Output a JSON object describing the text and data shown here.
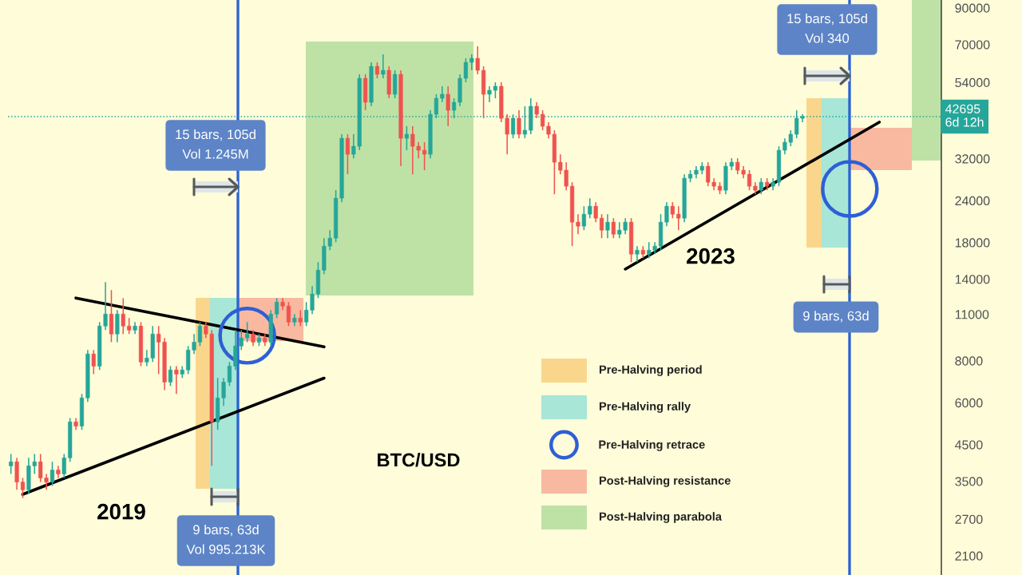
{
  "chart_data": {
    "type": "candlestick",
    "categories": [
      null,
      null,
      null,
      null,
      null,
      null,
      null,
      null,
      null,
      null,
      null,
      null,
      null,
      null,
      null,
      null,
      null,
      null,
      null,
      null,
      null,
      null,
      null,
      null,
      null,
      null,
      null,
      null,
      null,
      null,
      null,
      null,
      null,
      null,
      null,
      null,
      null,
      null,
      null,
      null,
      null,
      null,
      null,
      null,
      null,
      null,
      null,
      null,
      null,
      null,
      null,
      null,
      null,
      null,
      null,
      null,
      null,
      null,
      null,
      null,
      null,
      null,
      null,
      null,
      null,
      null,
      null,
      null,
      null,
      null,
      null,
      null,
      null,
      null,
      null,
      null,
      null,
      null,
      null,
      null,
      null,
      null,
      null,
      null,
      null,
      null,
      null,
      null,
      null,
      null,
      null,
      null,
      null,
      null,
      null,
      null,
      null,
      null,
      null,
      null,
      null,
      null,
      null,
      null,
      null,
      null,
      null,
      null,
      null,
      null,
      null,
      null,
      null,
      null,
      null,
      null,
      null,
      null,
      null,
      null,
      null,
      null,
      null,
      null,
      null,
      null,
      null,
      null,
      null,
      null,
      null,
      null,
      null,
      null,
      null,
      null,
      null,
      null,
      null,
      null,
      null,
      null,
      null,
      null,
      null,
      null,
      null,
      null,
      null,
      null,
      null,
      null,
      null,
      null,
      null,
      null,
      null,
      null
    ],
    "ohlc": [
      [
        3890,
        4220,
        3680,
        4000
      ],
      [
        4000,
        4110,
        3300,
        3480
      ],
      [
        3480,
        3580,
        3120,
        3300
      ],
      [
        3300,
        4110,
        3210,
        3890
      ],
      [
        3890,
        4220,
        3680,
        4000
      ],
      [
        4000,
        4220,
        3480,
        3580
      ],
      [
        3580,
        3680,
        3300,
        3480
      ],
      [
        3480,
        4000,
        3390,
        3780
      ],
      [
        3780,
        3890,
        3580,
        3680
      ],
      [
        3680,
        4220,
        3580,
        4110
      ],
      [
        4110,
        5400,
        4000,
        5260
      ],
      [
        5260,
        5400,
        4980,
        5110
      ],
      [
        5110,
        6370,
        4980,
        6200
      ],
      [
        6200,
        8610,
        6030,
        8380
      ],
      [
        8380,
        8610,
        7300,
        7710
      ],
      [
        7710,
        10430,
        7510,
        10150
      ],
      [
        10150,
        13720,
        9870,
        11020
      ],
      [
        11020,
        12990,
        9090,
        9610
      ],
      [
        9610,
        11320,
        9090,
        11020
      ],
      [
        11020,
        12290,
        9610,
        10150
      ],
      [
        10150,
        10720,
        9610,
        9870
      ],
      [
        9870,
        10430,
        9610,
        10150
      ],
      [
        10150,
        10430,
        7710,
        7930
      ],
      [
        7930,
        8610,
        7710,
        8150
      ],
      [
        8150,
        10150,
        7930,
        9610
      ],
      [
        9610,
        10150,
        7300,
        9090
      ],
      [
        9090,
        9350,
        6540,
        6910
      ],
      [
        6910,
        7710,
        6730,
        7510
      ],
      [
        7510,
        7710,
        6370,
        7300
      ],
      [
        7300,
        7710,
        7110,
        7510
      ],
      [
        7510,
        8850,
        7300,
        8610
      ],
      [
        8610,
        9610,
        8380,
        9090
      ],
      [
        9090,
        10430,
        8850,
        10150
      ],
      [
        10150,
        10430,
        9350,
        9610
      ],
      [
        9610,
        9870,
        3890,
        5260
      ],
      [
        5260,
        7110,
        4980,
        6200
      ],
      [
        6200,
        7110,
        5870,
        6910
      ],
      [
        6910,
        7930,
        6730,
        7710
      ],
      [
        7710,
        9870,
        7510,
        8850
      ],
      [
        8850,
        9870,
        8610,
        9350
      ],
      [
        9350,
        10430,
        9090,
        9610
      ],
      [
        9610,
        9870,
        8850,
        9090
      ],
      [
        9090,
        9610,
        8850,
        9350
      ],
      [
        9350,
        9610,
        8850,
        9090
      ],
      [
        9090,
        11320,
        8850,
        11020
      ],
      [
        11020,
        12290,
        10720,
        11960
      ],
      [
        11960,
        12290,
        11320,
        11640
      ],
      [
        11640,
        11960,
        10150,
        10430
      ],
      [
        10430,
        11020,
        10150,
        10720
      ],
      [
        10720,
        11320,
        10150,
        10430
      ],
      [
        10430,
        11960,
        10150,
        11320
      ],
      [
        11320,
        13350,
        11020,
        12640
      ],
      [
        12640,
        15730,
        12290,
        14890
      ],
      [
        14890,
        18550,
        14490,
        17560
      ],
      [
        17560,
        19590,
        17080,
        18550
      ],
      [
        18550,
        25770,
        18040,
        24400
      ],
      [
        24400,
        37830,
        23740,
        36800
      ],
      [
        36800,
        37830,
        28760,
        32980
      ],
      [
        32980,
        37830,
        32090,
        34840
      ],
      [
        34840,
        57070,
        33900,
        55520
      ],
      [
        55520,
        57070,
        44590,
        47100
      ],
      [
        47100,
        61960,
        45830,
        60280
      ],
      [
        60280,
        61960,
        55520,
        57070
      ],
      [
        57070,
        65450,
        55520,
        58650
      ],
      [
        58650,
        60280,
        48410,
        49760
      ],
      [
        49760,
        58650,
        48410,
        57070
      ],
      [
        57070,
        58650,
        30380,
        36800
      ],
      [
        36800,
        39960,
        33900,
        37830
      ],
      [
        37830,
        39960,
        28760,
        34840
      ],
      [
        34840,
        35810,
        32090,
        33900
      ],
      [
        33900,
        35810,
        29560,
        32980
      ],
      [
        32980,
        44590,
        32090,
        43380
      ],
      [
        43380,
        49760,
        42210,
        48410
      ],
      [
        48410,
        52560,
        47100,
        49760
      ],
      [
        49760,
        52560,
        39960,
        44590
      ],
      [
        44590,
        48410,
        42210,
        47100
      ],
      [
        47100,
        57070,
        45830,
        55520
      ],
      [
        55520,
        63680,
        54020,
        61960
      ],
      [
        61960,
        65450,
        58650,
        63680
      ],
      [
        63680,
        69140,
        57070,
        58650
      ],
      [
        58650,
        60280,
        42210,
        49760
      ],
      [
        49760,
        52560,
        47100,
        51140
      ],
      [
        51140,
        54020,
        48410,
        52560
      ],
      [
        52560,
        54020,
        41070,
        42210
      ],
      [
        42210,
        43380,
        32980,
        37830
      ],
      [
        37830,
        43380,
        36800,
        42210
      ],
      [
        42210,
        44590,
        36800,
        37830
      ],
      [
        37830,
        45830,
        36800,
        38880
      ],
      [
        38880,
        48410,
        37830,
        45830
      ],
      [
        45830,
        47100,
        42210,
        43380
      ],
      [
        43380,
        44590,
        38880,
        39960
      ],
      [
        39960,
        41070,
        36800,
        37830
      ],
      [
        37830,
        38880,
        25070,
        31220
      ],
      [
        31220,
        32980,
        28760,
        29560
      ],
      [
        29560,
        31220,
        25770,
        26490
      ],
      [
        26490,
        27220,
        17560,
        20700
      ],
      [
        20700,
        21860,
        19060,
        20140
      ],
      [
        20140,
        23090,
        19590,
        21860
      ],
      [
        21860,
        24400,
        21270,
        23090
      ],
      [
        23090,
        23740,
        20700,
        21270
      ],
      [
        21270,
        21860,
        18550,
        19590
      ],
      [
        19590,
        21860,
        18550,
        20700
      ],
      [
        20700,
        21270,
        18550,
        19060
      ],
      [
        19060,
        20700,
        18550,
        19590
      ],
      [
        19590,
        21270,
        19060,
        20700
      ],
      [
        20700,
        21270,
        15730,
        16620
      ],
      [
        16620,
        17560,
        15730,
        17080
      ],
      [
        17080,
        17560,
        16170,
        16620
      ],
      [
        16620,
        18040,
        16170,
        17080
      ],
      [
        17080,
        18040,
        16620,
        17560
      ],
      [
        17560,
        21860,
        17080,
        20700
      ],
      [
        20700,
        23740,
        20140,
        23090
      ],
      [
        23090,
        23740,
        21270,
        21860
      ],
      [
        21860,
        23090,
        19590,
        21270
      ],
      [
        21270,
        28760,
        20700,
        27980
      ],
      [
        27980,
        29560,
        27220,
        28760
      ],
      [
        28760,
        30380,
        27980,
        29560
      ],
      [
        29560,
        31220,
        28760,
        30380
      ],
      [
        30380,
        31220,
        26490,
        27220
      ],
      [
        27220,
        27980,
        25770,
        26490
      ],
      [
        26490,
        27220,
        25070,
        25770
      ],
      [
        25770,
        31220,
        25070,
        30380
      ],
      [
        30380,
        32090,
        29560,
        31220
      ],
      [
        31220,
        32090,
        28760,
        29560
      ],
      [
        29560,
        30380,
        27980,
        28760
      ],
      [
        28760,
        29560,
        25770,
        26490
      ],
      [
        26490,
        27220,
        25070,
        25770
      ],
      [
        25770,
        27980,
        25070,
        27220
      ],
      [
        27220,
        27980,
        25770,
        26490
      ],
      [
        26490,
        27980,
        25770,
        27220
      ],
      [
        27220,
        34840,
        26490,
        33900
      ],
      [
        33900,
        36800,
        32980,
        35810
      ],
      [
        35810,
        38880,
        34840,
        37830
      ],
      [
        37830,
        44590,
        36800,
        42210
      ],
      [
        42210,
        43380,
        41070,
        42695
      ],
      null,
      null,
      null,
      null,
      null,
      null,
      null,
      null,
      null,
      null,
      null,
      null,
      null,
      null,
      null,
      null,
      null,
      null,
      null,
      null,
      null,
      null,
      null
    ],
    "colors": [
      "#26a69a",
      "#ef5350",
      "#ef5350",
      "#26a69a",
      "#26a69a",
      "#ef5350",
      "#ef5350",
      "#26a69a",
      "#ef5350",
      "#26a69a",
      "#26a69a",
      "#ef5350",
      "#26a69a",
      "#26a69a",
      "#ef5350",
      "#26a69a",
      "#26a69a",
      "#ef5350",
      "#26a69a",
      "#ef5350",
      "#ef5350",
      "#26a69a",
      "#ef5350",
      "#26a69a",
      "#26a69a",
      "#ef5350",
      "#ef5350",
      "#26a69a",
      "#ef5350",
      "#26a69a",
      "#26a69a",
      "#26a69a",
      "#26a69a",
      "#ef5350",
      "#ef5350",
      "#26a69a",
      "#26a69a",
      "#26a69a",
      "#26a69a",
      "#26a69a",
      "#26a69a",
      "#ef5350",
      "#26a69a",
      "#ef5350",
      "#26a69a",
      "#26a69a",
      "#ef5350",
      "#ef5350",
      "#26a69a",
      "#ef5350",
      "#26a69a",
      "#26a69a",
      "#26a69a",
      "#26a69a",
      "#26a69a",
      "#26a69a",
      "#26a69a",
      "#ef5350",
      "#26a69a",
      "#26a69a",
      "#ef5350",
      "#26a69a",
      "#ef5350",
      "#26a69a",
      "#ef5350",
      "#26a69a",
      "#ef5350",
      "#26a69a",
      "#ef5350",
      "#ef5350",
      "#ef5350",
      "#26a69a",
      "#26a69a",
      "#26a69a",
      "#ef5350",
      "#26a69a",
      "#26a69a",
      "#26a69a",
      "#26a69a",
      "#ef5350",
      "#ef5350",
      "#26a69a",
      "#26a69a",
      "#ef5350",
      "#ef5350",
      "#26a69a",
      "#ef5350",
      "#26a69a",
      "#26a69a",
      "#ef5350",
      "#ef5350",
      "#ef5350",
      "#ef5350",
      "#ef5350",
      "#ef5350",
      "#ef5350",
      "#ef5350",
      "#26a69a",
      "#26a69a",
      "#ef5350",
      "#ef5350",
      "#26a69a",
      "#ef5350",
      "#26a69a",
      "#26a69a",
      "#ef5350",
      "#26a69a",
      "#ef5350",
      "#26a69a",
      "#26a69a",
      "#26a69a",
      "#26a69a",
      "#ef5350",
      "#ef5350",
      "#26a69a",
      "#26a69a",
      "#26a69a",
      "#26a69a",
      "#ef5350",
      "#ef5350",
      "#ef5350",
      "#26a69a",
      "#26a69a",
      "#ef5350",
      "#ef5350",
      "#ef5350",
      "#ef5350",
      "#26a69a",
      "#ef5350",
      "#26a69a",
      "#26a69a",
      "#26a69a",
      "#26a69a",
      "#26a69a",
      "#26a69a",
      null,
      null,
      null,
      null,
      null,
      null,
      null,
      null,
      null,
      null,
      null,
      null,
      null,
      null,
      null,
      null,
      null,
      null,
      null,
      null,
      null,
      null,
      null
    ],
    "series": [
      {
        "type": "line",
        "color": "#000000",
        "values": [
          null,
          null,
          null,
          null,
          null,
          null,
          null,
          null,
          null,
          null,
          null,
          12300,
          null,
          null,
          null,
          null,
          null,
          null,
          null,
          null,
          null,
          null,
          null,
          null,
          null,
          null,
          null,
          null,
          null,
          null,
          null,
          null,
          null,
          null,
          null,
          null,
          null,
          null,
          null,
          null,
          null,
          null,
          null,
          null,
          null,
          null,
          null,
          null,
          null,
          null,
          null,
          null,
          null,
          8800,
          null,
          null,
          null,
          null,
          null,
          null,
          null,
          null,
          null,
          null,
          null,
          null,
          null,
          null,
          null,
          null,
          null,
          null,
          null,
          null,
          null,
          null,
          null,
          null,
          null,
          null,
          null,
          null,
          null,
          null,
          null,
          null,
          null,
          null,
          null,
          null,
          null,
          null,
          null,
          null,
          null,
          null,
          null,
          null,
          null,
          null,
          null,
          null,
          null,
          null,
          null,
          null,
          null,
          null,
          null,
          null,
          null,
          null,
          null,
          null,
          null,
          null,
          null,
          null,
          null,
          null,
          null,
          null,
          null,
          null,
          null,
          null,
          null,
          null,
          null,
          null,
          null,
          null,
          null,
          null,
          null,
          null,
          null,
          null,
          null,
          null,
          null,
          null,
          null,
          null,
          null,
          null,
          null,
          null,
          null,
          null,
          null,
          null,
          null,
          null,
          null,
          null,
          null,
          null
        ]
      },
      {
        "type": "line",
        "color": "#000000",
        "values": [
          null,
          null,
          3200,
          null,
          null,
          null,
          null,
          null,
          null,
          null,
          null,
          null,
          null,
          null,
          null,
          null,
          null,
          null,
          null,
          null,
          null,
          null,
          null,
          null,
          null,
          null,
          null,
          null,
          null,
          null,
          null,
          null,
          null,
          null,
          null,
          null,
          null,
          null,
          null,
          null,
          null,
          null,
          null,
          null,
          null,
          null,
          null,
          null,
          null,
          null,
          null,
          null,
          null,
          7100,
          null,
          null,
          null,
          null,
          null,
          null,
          null,
          null,
          null,
          null,
          null,
          null,
          null,
          null,
          null,
          null,
          null,
          null,
          null,
          null,
          null,
          null,
          null,
          null,
          null,
          null,
          null,
          null,
          null,
          null,
          null,
          null,
          null,
          null,
          null,
          null,
          null,
          null,
          null,
          null,
          null,
          null,
          null,
          null,
          null,
          null,
          null,
          null,
          null,
          null,
          null,
          null,
          null,
          null,
          null,
          null,
          null,
          null,
          null,
          null,
          null,
          null,
          null,
          null,
          null,
          null,
          null,
          null,
          null,
          null,
          null,
          null,
          null,
          null,
          null,
          null,
          null,
          null,
          null,
          null,
          null,
          null,
          null,
          null,
          null,
          null,
          null,
          null,
          null,
          null,
          null,
          null,
          null,
          null,
          null,
          null,
          null,
          null,
          null,
          null,
          null,
          null,
          null,
          null
        ]
      },
      {
        "type": "line",
        "color": "#000000",
        "values": [
          null,
          null,
          null,
          null,
          null,
          null,
          null,
          null,
          null,
          null,
          null,
          null,
          null,
          null,
          null,
          null,
          null,
          null,
          null,
          null,
          null,
          null,
          null,
          null,
          null,
          null,
          null,
          null,
          null,
          null,
          null,
          null,
          null,
          null,
          null,
          null,
          null,
          null,
          null,
          null,
          null,
          null,
          null,
          null,
          null,
          null,
          null,
          null,
          null,
          null,
          null,
          null,
          null,
          null,
          null,
          null,
          null,
          null,
          null,
          null,
          null,
          null,
          null,
          null,
          null,
          null,
          null,
          null,
          null,
          null,
          null,
          null,
          null,
          null,
          null,
          null,
          null,
          null,
          null,
          null,
          null,
          null,
          null,
          null,
          null,
          null,
          null,
          null,
          null,
          null,
          null,
          null,
          null,
          null,
          null,
          null,
          null,
          null,
          null,
          null,
          null,
          null,
          null,
          null,
          15000,
          null,
          null,
          null,
          null,
          null,
          null,
          null,
          null,
          null,
          null,
          null,
          null,
          null,
          null,
          null,
          null,
          null,
          null,
          null,
          null,
          null,
          null,
          null,
          null,
          null,
          null,
          null,
          null,
          null,
          null,
          null,
          null,
          null,
          null,
          null,
          null,
          null,
          null,
          null,
          null,
          null,
          null,
          41100,
          null,
          null,
          null,
          null,
          null,
          null,
          null,
          null,
          null,
          null
        ]
      },
      {
        "type": "scatter",
        "name": "Pre-Halving retrace",
        "color": "#2e5fd6",
        "marker": "circle",
        "values": [
          null,
          null,
          null,
          null,
          null,
          null,
          null,
          null,
          null,
          null,
          null,
          null,
          null,
          null,
          null,
          null,
          null,
          null,
          null,
          null,
          null,
          null,
          null,
          null,
          null,
          null,
          null,
          null,
          null,
          null,
          null,
          null,
          null,
          null,
          null,
          null,
          null,
          null,
          null,
          null,
          9500,
          null,
          null,
          null,
          null,
          null,
          null,
          null,
          null,
          null,
          null,
          null,
          null,
          null,
          null,
          null,
          null,
          null,
          null,
          null,
          null,
          null,
          null,
          null,
          null,
          null,
          null,
          null,
          null,
          null,
          null,
          null,
          null,
          null,
          null,
          null,
          null,
          null,
          null,
          null,
          null,
          null,
          null,
          null,
          null,
          null,
          null,
          null,
          null,
          null,
          null,
          null,
          null,
          null,
          null,
          null,
          null,
          null,
          null,
          null,
          null,
          null,
          null,
          null,
          null,
          null,
          null,
          null,
          null,
          null,
          null,
          null,
          null,
          null,
          null,
          null,
          null,
          null,
          null,
          null,
          null,
          null,
          null,
          null,
          null,
          null,
          null,
          null,
          null,
          null,
          null,
          null,
          null,
          null,
          null,
          null,
          null,
          null,
          null,
          null,
          null,
          null,
          26000,
          null,
          null,
          null,
          null,
          null,
          null,
          null,
          null,
          null,
          null,
          null,
          null,
          null,
          null,
          null
        ]
      }
    ],
    "ref_lines": [
      {
        "axis": "y",
        "value": 42695,
        "label": "42695\n6d 12h",
        "color": "#26a69a",
        "line_style": "dotted"
      }
    ],
    "annotations": [
      "15 bars, 105d\nVol 1.245M",
      "9 bars, 63d\nVol 995.213K",
      "15 bars, 105d\nVol 340",
      "9 bars, 63d",
      "2019",
      "2023",
      "BTC/USD",
      "Pre-Halving period",
      "Pre-Halving rally",
      "Post-Halving resistance",
      "Post-Halving parabola"
    ],
    "log": true,
    "ylim": [
      1840,
      95000
    ],
    "yticks": [
      2100,
      2700,
      3500,
      4500,
      6000,
      8000,
      11000,
      14000,
      18000,
      24000,
      32000,
      54000,
      70000,
      90000
    ],
    "tick_labels": "y",
    "legend": "bottom"
  }
}
